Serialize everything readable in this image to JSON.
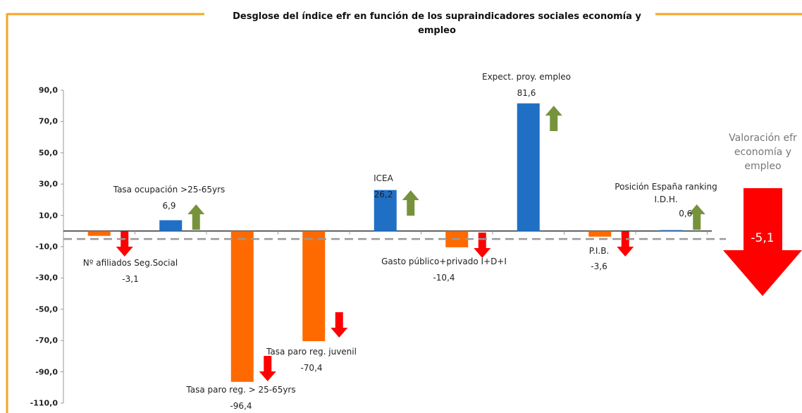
{
  "chart_data": {
    "type": "bar",
    "title": "Desglose del índice efr en función de los supraindicadores sociales economía y empleo",
    "categories": [
      "Nº afiliados Seg.Social",
      "Tasa ocupación >25-65yrs",
      "Tasa paro reg. > 25-65yrs",
      "Tasa paro reg. juvenil",
      "ICEA",
      "Gasto público+privado I+D+I",
      "Expect. proy. empleo",
      "P.I.B.",
      "Posición España ranking I.D.H."
    ],
    "values": [
      -3.1,
      6.9,
      -96.4,
      -70.4,
      26.2,
      -10.4,
      81.6,
      -3.6,
      0.6
    ],
    "value_labels": [
      "-3,1",
      "6,9",
      "-96,4",
      "-70,4",
      "26,2",
      "-10,4",
      "81,6",
      "-3,6",
      "0,6"
    ],
    "colors": [
      "#ff6a00",
      "#1f6fc5",
      "#ff6a00",
      "#ff6a00",
      "#1f6fc5",
      "#ff6a00",
      "#1f6fc5",
      "#ff6a00",
      "#1f6fc5"
    ],
    "ylim": [
      -110,
      90
    ],
    "yticks": [
      {
        "value": 90,
        "label": "90,0"
      },
      {
        "value": 70,
        "label": "70,0"
      },
      {
        "value": 50,
        "label": "50,0"
      },
      {
        "value": 30,
        "label": "30,0"
      },
      {
        "value": 10,
        "label": "10,0"
      },
      {
        "value": -10,
        "label": "-10,0"
      },
      {
        "value": -30,
        "label": "-30,0"
      },
      {
        "value": -50,
        "label": "-50,0"
      },
      {
        "value": -70,
        "label": "-70,0"
      },
      {
        "value": -90,
        "label": "-90,0"
      },
      {
        "value": -110,
        "label": "-110,0"
      }
    ],
    "overall": {
      "label": "Valoración efr economía y empleo",
      "value": -5.1,
      "value_label": "-5,1"
    }
  }
}
